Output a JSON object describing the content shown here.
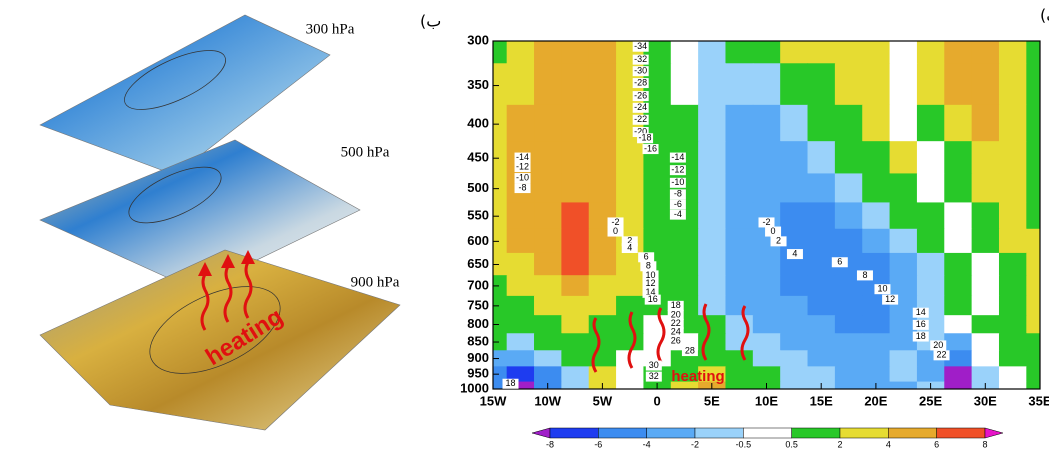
{
  "chart_data": [
    {
      "type": "contour",
      "label": "الف)",
      "annotation": "heating",
      "x": [
        -15,
        -12.5,
        -10,
        -7.5,
        -5,
        -2.5,
        0,
        2.5,
        5,
        7.5,
        10,
        12.5,
        15,
        17.5,
        20,
        22.5,
        25,
        27.5,
        30,
        32.5,
        35
      ],
      "y": [
        300,
        350,
        400,
        450,
        500,
        550,
        600,
        650,
        700,
        750,
        800,
        850,
        900,
        950,
        1000
      ],
      "z": [
        [
          1.5,
          3,
          5,
          5,
          5,
          3,
          1,
          0,
          -1,
          1,
          1,
          3,
          3,
          3,
          3,
          0,
          3,
          5,
          5,
          3,
          1
        ],
        [
          3,
          3,
          5,
          5,
          5,
          3,
          1,
          0,
          -1,
          -1,
          -1,
          1,
          1,
          3,
          3,
          0,
          3,
          5,
          5,
          3,
          1
        ],
        [
          3,
          5,
          5,
          5,
          5,
          3,
          1,
          1,
          -1,
          -3,
          -3,
          -1,
          1,
          1,
          3,
          0,
          1,
          3,
          5,
          3,
          1
        ],
        [
          3,
          5,
          5,
          5,
          5,
          3,
          1,
          1,
          -1,
          -3,
          -3,
          -3,
          -1,
          1,
          1,
          3,
          0,
          1,
          3,
          3,
          1
        ],
        [
          3,
          5,
          5,
          5,
          5,
          3,
          1,
          1,
          -1,
          -3,
          -3,
          -3,
          -3,
          -1,
          1,
          1,
          0,
          1,
          3,
          3,
          1
        ],
        [
          3,
          5,
          5,
          7,
          5,
          3,
          1,
          1,
          -1,
          -3,
          -3,
          -5,
          -5,
          -3,
          -1,
          1,
          1,
          0,
          1,
          3,
          1
        ],
        [
          3,
          5,
          5,
          7,
          5,
          3,
          1,
          1,
          -1,
          -3,
          -3,
          -5,
          -5,
          -5,
          -3,
          -1,
          1,
          0,
          1,
          3,
          3
        ],
        [
          3,
          3,
          5,
          7,
          5,
          3,
          1,
          1,
          -1,
          -3,
          -3,
          -5,
          -5,
          -5,
          -5,
          -3,
          -1,
          1,
          0,
          1,
          3
        ],
        [
          1,
          3,
          3,
          5,
          3,
          3,
          1,
          1,
          -1,
          -3,
          -3,
          -5,
          -5,
          -5,
          -5,
          -3,
          -1,
          1,
          0,
          1,
          3
        ],
        [
          1,
          1,
          3,
          3,
          3,
          1,
          1,
          1,
          -1,
          -3,
          -3,
          -3,
          -5,
          -5,
          -5,
          -3,
          -1,
          1,
          0,
          1,
          3
        ],
        [
          1,
          1,
          1,
          3,
          1,
          1,
          0,
          1,
          1,
          -1,
          -3,
          -3,
          -3,
          -5,
          -5,
          -3,
          -1,
          0,
          1,
          1,
          3
        ],
        [
          1,
          -1,
          1,
          1,
          1,
          1,
          0,
          0,
          1,
          -1,
          -1,
          -3,
          -3,
          -3,
          -3,
          -3,
          -1,
          -3,
          0,
          1,
          1
        ],
        [
          -3,
          -3,
          -1,
          1,
          1,
          0,
          0,
          1,
          1,
          1,
          -1,
          -1,
          -3,
          -3,
          -3,
          -1,
          -3,
          -5,
          0,
          1,
          1
        ],
        [
          -5,
          -7,
          -5,
          -1,
          3,
          0,
          1,
          1,
          3,
          1,
          1,
          -1,
          -1,
          -3,
          -3,
          -1,
          -3,
          -9,
          -1,
          0,
          1
        ],
        [
          -5,
          -9,
          -5,
          -1,
          3,
          0,
          1,
          3,
          5,
          1,
          1,
          -1,
          -1,
          -3,
          -3,
          -3,
          -1,
          -9,
          -1,
          0,
          1
        ]
      ],
      "xlim": [
        -15,
        35
      ],
      "xticks": [
        {
          "value": -15,
          "label": "15W"
        },
        {
          "value": -10,
          "label": "10W"
        },
        {
          "value": -5,
          "label": "5W"
        },
        0,
        {
          "value": 5,
          "label": "5E"
        },
        {
          "value": 10,
          "label": "10E"
        },
        {
          "value": 15,
          "label": "15E"
        },
        {
          "value": 20,
          "label": "20E"
        },
        {
          "value": 25,
          "label": "25E"
        },
        {
          "value": 30,
          "label": "30E"
        },
        {
          "value": 35,
          "label": "35E"
        }
      ],
      "ylim": [
        1000,
        300
      ],
      "log_y": true,
      "yticks": [
        300,
        350,
        400,
        450,
        500,
        550,
        600,
        650,
        700,
        750,
        800,
        850,
        900,
        950,
        1000
      ],
      "colorbar": {
        "levels": [
          -8,
          -6,
          -4,
          -2,
          -0.5,
          0.5,
          2,
          4,
          6,
          8
        ],
        "colors": [
          "#a01ec8",
          "#1e3cf0",
          "#3c8cf0",
          "#5aaaf5",
          "#9ad2fa",
          "#ffffff",
          "#28c828",
          "#e6dc32",
          "#e6aa2d",
          "#f05028",
          "#e614c8"
        ]
      },
      "contour_labels": [
        {
          "lon": -1.5,
          "p": 306,
          "value": -34
        },
        {
          "lon": -1.5,
          "p": 320,
          "value": -32
        },
        {
          "lon": -1.5,
          "p": 333,
          "value": -30
        },
        {
          "lon": -1.5,
          "p": 347,
          "value": -28
        },
        {
          "lon": -1.5,
          "p": 363,
          "value": -26
        },
        {
          "lon": -1.5,
          "p": 378,
          "value": -24
        },
        {
          "lon": -1.5,
          "p": 394,
          "value": -22
        },
        {
          "lon": -1.5,
          "p": 411,
          "value": -20
        },
        {
          "lon": -1.1,
          "p": 420,
          "value": -18
        },
        {
          "lon": -0.6,
          "p": 436,
          "value": -16
        },
        {
          "lon": -12.3,
          "p": 449,
          "value": -14
        },
        {
          "lon": -12.3,
          "p": 464,
          "value": -12
        },
        {
          "lon": -12.3,
          "p": 482,
          "value": -10
        },
        {
          "lon": -12.3,
          "p": 499,
          "value": -8
        },
        {
          "lon": 1.9,
          "p": 449,
          "value": -14
        },
        {
          "lon": 1.9,
          "p": 469,
          "value": -12
        },
        {
          "lon": 1.9,
          "p": 490,
          "value": -10
        },
        {
          "lon": 1.9,
          "p": 510,
          "value": -8
        },
        {
          "lon": 1.9,
          "p": 528,
          "value": -6
        },
        {
          "lon": 1.9,
          "p": 547,
          "value": -4
        },
        {
          "lon": -3.8,
          "p": 562,
          "value": -2
        },
        {
          "lon": -3.8,
          "p": 580,
          "value": 0
        },
        {
          "lon": -2.5,
          "p": 600,
          "value": 2
        },
        {
          "lon": -2.5,
          "p": 614,
          "value": 4
        },
        {
          "lon": -1.0,
          "p": 634,
          "value": 6
        },
        {
          "lon": -0.8,
          "p": 654,
          "value": 8
        },
        {
          "lon": -0.6,
          "p": 675,
          "value": 10
        },
        {
          "lon": -0.6,
          "p": 694,
          "value": 12
        },
        {
          "lon": -0.6,
          "p": 717,
          "value": 14
        },
        {
          "lon": -0.4,
          "p": 734,
          "value": 16
        },
        {
          "lon": 1.7,
          "p": 750,
          "value": 18
        },
        {
          "lon": 1.7,
          "p": 774,
          "value": 20
        },
        {
          "lon": 1.7,
          "p": 798,
          "value": 22
        },
        {
          "lon": 1.7,
          "p": 822,
          "value": 24
        },
        {
          "lon": 1.7,
          "p": 848,
          "value": 26
        },
        {
          "lon": 3.0,
          "p": 877,
          "value": 28
        },
        {
          "lon": -0.3,
          "p": 922,
          "value": 30
        },
        {
          "lon": -0.3,
          "p": 958,
          "value": 32
        },
        {
          "lon": -13.4,
          "p": 982,
          "value": 18
        },
        {
          "lon": 10.0,
          "p": 562,
          "value": -2
        },
        {
          "lon": 10.6,
          "p": 580,
          "value": 0
        },
        {
          "lon": 11.1,
          "p": 600,
          "value": 2
        },
        {
          "lon": 12.6,
          "p": 627,
          "value": 4
        },
        {
          "lon": 16.7,
          "p": 645,
          "value": 6
        },
        {
          "lon": 19.0,
          "p": 675,
          "value": 8
        },
        {
          "lon": 20.6,
          "p": 708,
          "value": 10
        },
        {
          "lon": 21.3,
          "p": 734,
          "value": 12
        },
        {
          "lon": 24.1,
          "p": 768,
          "value": 14
        },
        {
          "lon": 24.1,
          "p": 801,
          "value": 16
        },
        {
          "lon": 24.1,
          "p": 834,
          "value": 18
        },
        {
          "lon": 25.7,
          "p": 860,
          "value": 20
        },
        {
          "lon": 26.0,
          "p": 890,
          "value": 22
        }
      ]
    },
    {
      "type": "layers3d",
      "label": "ب)",
      "levels": [
        "300 hPa",
        "500 hPa",
        "900 hPa"
      ],
      "annotation": "heating"
    }
  ]
}
